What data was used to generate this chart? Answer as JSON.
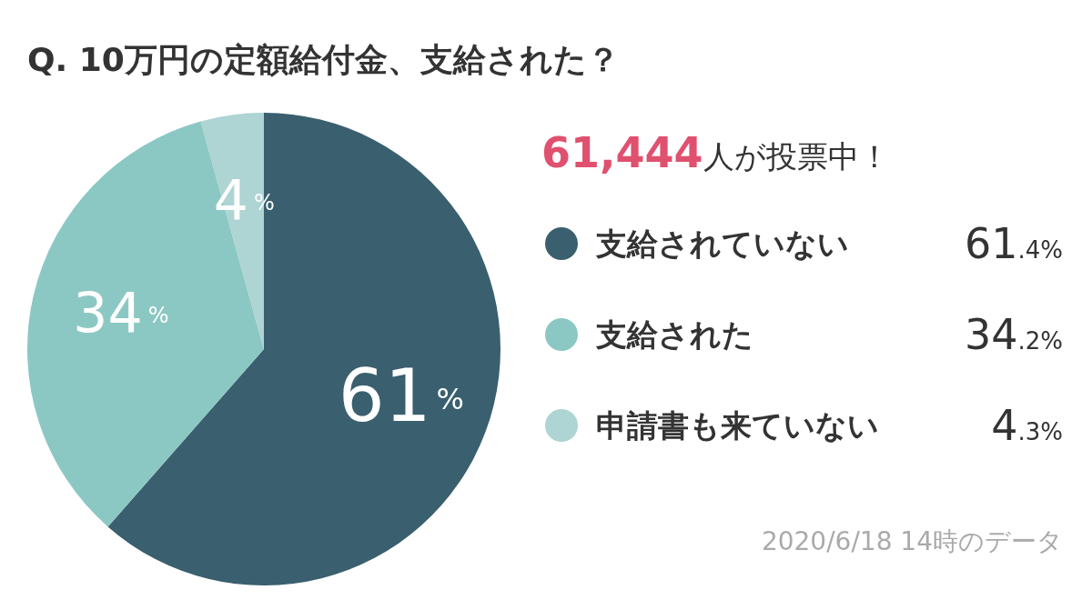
{
  "chart_data": {
    "type": "pie",
    "title": "Q. 10万円の定額給付金、支給された？",
    "subtitle": "61,444人が投票中！",
    "categories": [
      "支給されていない",
      "支給された",
      "申請書も来ていない"
    ],
    "values": [
      61.4,
      34.2,
      4.3
    ],
    "colors": [
      "#3a5f6e",
      "#8cc8c3",
      "#aed4d3"
    ],
    "value_labels": [
      "61%",
      "34%",
      "4%"
    ],
    "legend": "right",
    "annotations": [
      "61.4%",
      "34.2%",
      "4.3%",
      "2020/6/18 14時のデータ"
    ]
  }
}
